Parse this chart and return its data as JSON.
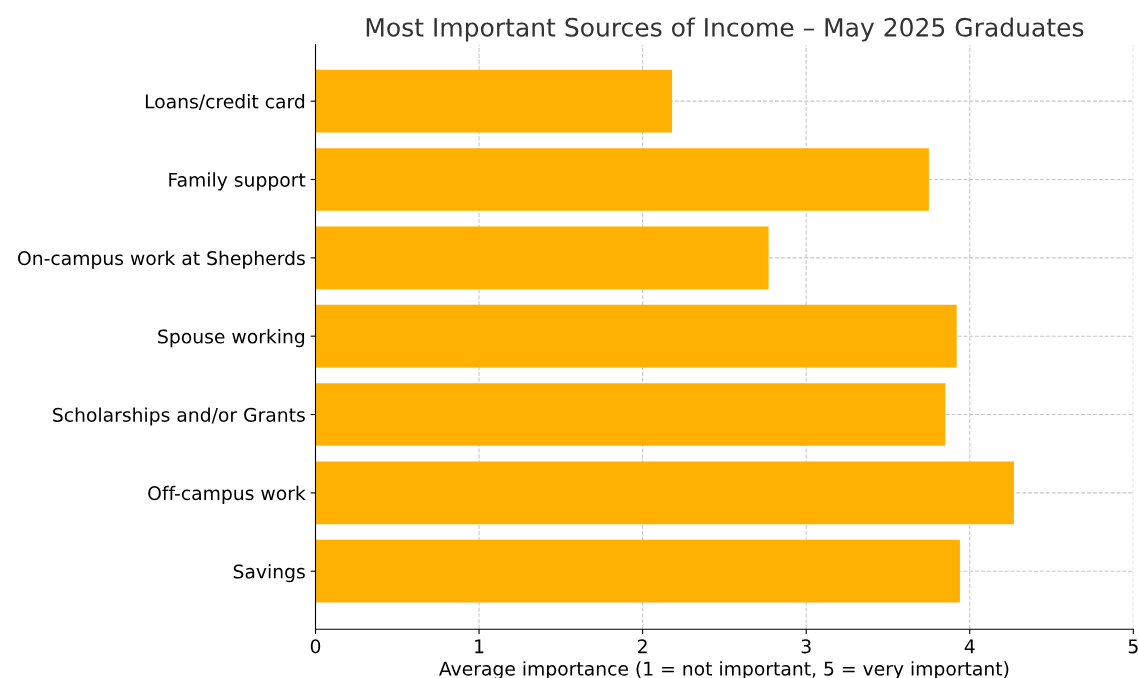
{
  "chart_data": {
    "type": "bar",
    "orientation": "horizontal",
    "title": "Most Important Sources of Income – May 2025 Graduates",
    "xlabel": "Average importance (1 = not important, 5 = very important)",
    "categories": [
      "Loans/credit card",
      "Family support",
      "On-campus work at Shepherds",
      "Spouse working",
      "Scholarships and/or Grants",
      "Off-campus work",
      "Savings"
    ],
    "values": [
      2.18,
      3.75,
      2.77,
      3.92,
      3.85,
      4.27,
      3.94
    ],
    "color": "#ffb000",
    "xlim": [
      0,
      5
    ],
    "xticks": [
      0,
      1,
      2,
      3,
      4,
      5
    ],
    "grid": true
  }
}
